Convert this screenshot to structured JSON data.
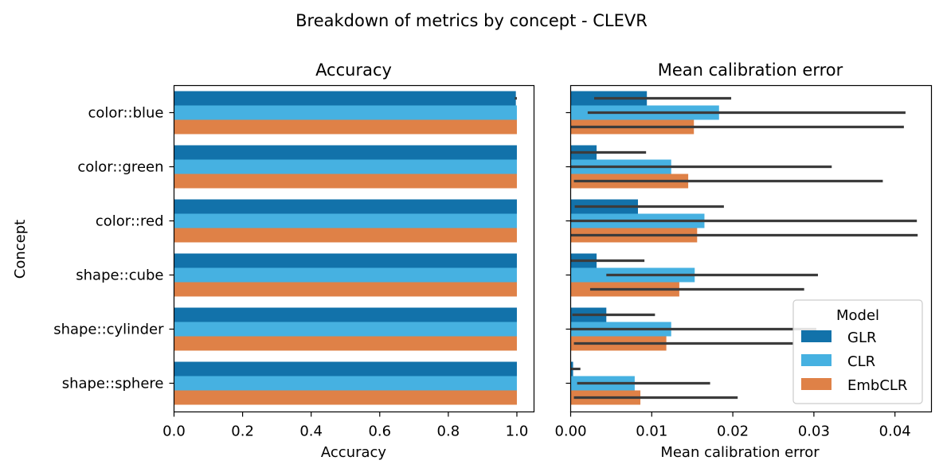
{
  "figure": {
    "title": "Breakdown of metrics by concept - CLEVR"
  },
  "colors": {
    "GLR": "#1272aa",
    "CLR": "#46b1e1",
    "EmbCLR": "#df8147",
    "error_bar": "#3c3c3c"
  },
  "legend": {
    "title": "Model",
    "placement": "lower-right (right panel)",
    "entries": [
      "GLR",
      "CLR",
      "EmbCLR"
    ]
  },
  "chart_data": [
    {
      "type": "bar",
      "orientation": "horizontal",
      "title": "Accuracy",
      "xlabel": "Accuracy",
      "ylabel": "Concept",
      "xlim": [
        0.0,
        1.05
      ],
      "xticks": [
        0.0,
        0.2,
        0.4,
        0.6,
        0.8,
        1.0
      ],
      "xtick_labels": [
        "0.0",
        "0.2",
        "0.4",
        "0.6",
        "0.8",
        "1.0"
      ],
      "categories": [
        "color::blue",
        "color::green",
        "color::red",
        "shape::cube",
        "shape::cylinder",
        "shape::sphere"
      ],
      "series": [
        {
          "name": "GLR",
          "values": [
            0.997,
            1.0,
            1.0,
            1.0,
            1.0,
            1.0
          ],
          "err_low": [
            0.994,
            null,
            null,
            null,
            null,
            null
          ],
          "err_high": [
            1.0,
            null,
            null,
            null,
            null,
            null
          ]
        },
        {
          "name": "CLR",
          "values": [
            1.0,
            1.0,
            1.0,
            1.0,
            1.0,
            1.0
          ]
        },
        {
          "name": "EmbCLR",
          "values": [
            1.0,
            1.0,
            1.0,
            1.0,
            1.0,
            1.0
          ]
        }
      ]
    },
    {
      "type": "bar",
      "orientation": "horizontal",
      "title": "Mean calibration error",
      "xlabel": "Mean calibration error",
      "ylabel": "",
      "xlim": [
        0.0,
        0.0445
      ],
      "xticks": [
        0.0,
        0.01,
        0.02,
        0.03,
        0.04
      ],
      "xtick_labels": [
        "0.00",
        "0.01",
        "0.02",
        "0.03",
        "0.04"
      ],
      "categories": [
        "color::blue",
        "color::green",
        "color::red",
        "shape::cube",
        "shape::cylinder",
        "shape::sphere"
      ],
      "series": [
        {
          "name": "GLR",
          "values": [
            0.0094,
            0.0032,
            0.0083,
            0.0032,
            0.0044,
            0.0003
          ],
          "err_low": [
            0.0029,
            0.0,
            0.0005,
            0.0,
            0.0002,
            0.0
          ],
          "err_high": [
            0.0198,
            0.0093,
            0.0189,
            0.0091,
            0.0104,
            0.0012
          ]
        },
        {
          "name": "CLR",
          "values": [
            0.0183,
            0.0124,
            0.0165,
            0.0153,
            0.0124,
            0.0079
          ],
          "err_low": [
            0.0021,
            0.0,
            0.0,
            0.0044,
            0.0,
            0.0008
          ],
          "err_high": [
            0.0413,
            0.0322,
            0.0427,
            0.0305,
            0.0303,
            0.0172
          ]
        },
        {
          "name": "EmbCLR",
          "values": [
            0.0152,
            0.0145,
            0.0156,
            0.0134,
            0.0118,
            0.0086
          ],
          "err_low": [
            0.0,
            0.0004,
            0.0,
            0.0024,
            0.0004,
            0.0004
          ],
          "err_high": [
            0.0411,
            0.0385,
            0.0428,
            0.0288,
            0.0274,
            0.0206
          ]
        }
      ]
    }
  ]
}
